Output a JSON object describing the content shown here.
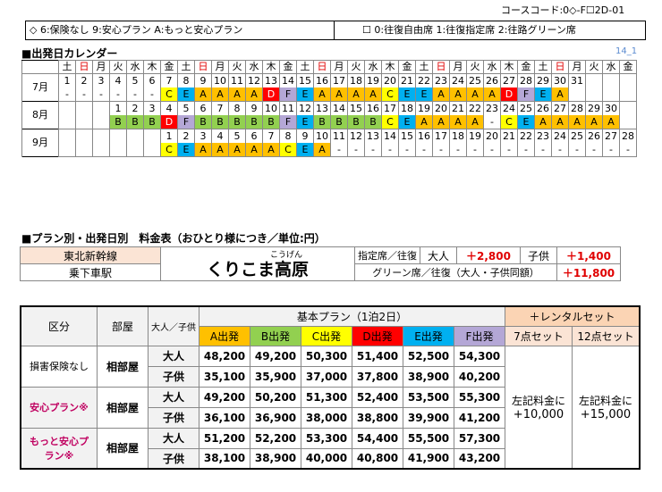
{
  "course_code": "コースコード:0◇-F☐2D-01",
  "legend_left": "◇ 6:保険なし 9:安心プラン A:もっと安心プラン",
  "legend_right": "☐ 0:往復自由席 1:往復指定席 2:往路グリーン席",
  "calendar_title": "■出発日カレンダー",
  "calendar_code": "14_1",
  "weekday_headers": [
    "土",
    "日",
    "月",
    "火",
    "水",
    "木",
    "金",
    "土",
    "日",
    "月",
    "火",
    "水",
    "木",
    "金",
    "土",
    "日",
    "月",
    "火",
    "水",
    "木",
    "金",
    "土",
    "日",
    "月",
    "火",
    "水",
    "木",
    "金",
    "土",
    "日",
    "月",
    "火",
    "水",
    "金"
  ],
  "months": [
    {
      "label": "7月",
      "days": [
        "1",
        "2",
        "3",
        "4",
        "5",
        "6",
        "7",
        "8",
        "9",
        "10",
        "11",
        "12",
        "13",
        "14",
        "15",
        "16",
        "17",
        "18",
        "19",
        "20",
        "21",
        "22",
        "23",
        "24",
        "25",
        "26",
        "27",
        "28",
        "29",
        "30",
        "31",
        "",
        "",
        ""
      ],
      "plans": [
        "-",
        "-",
        "-",
        "-",
        "-",
        "-",
        "C",
        "E",
        "A",
        "A",
        "A",
        "A",
        "D",
        "F",
        "E",
        "A",
        "A",
        "A",
        "A",
        "C",
        "E",
        "E",
        "A",
        "A",
        "A",
        "A",
        "D",
        "F",
        "E",
        "A",
        "",
        "",
        "",
        ""
      ]
    },
    {
      "label": "8月",
      "days": [
        "",
        "",
        "",
        "1",
        "2",
        "3",
        "4",
        "5",
        "6",
        "7",
        "8",
        "9",
        "10",
        "11",
        "12",
        "13",
        "14",
        "15",
        "16",
        "17",
        "18",
        "19",
        "20",
        "21",
        "22",
        "23",
        "24",
        "25",
        "26",
        "27",
        "28",
        "29",
        "30",
        ""
      ],
      "plans": [
        "",
        "",
        "",
        "B",
        "B",
        "B",
        "D",
        "F",
        "B",
        "B",
        "B",
        "B",
        "B",
        "F",
        "E",
        "B",
        "B",
        "B",
        "B",
        "C",
        "E",
        "A",
        "A",
        "A",
        "A",
        "-",
        "C",
        "E",
        "A",
        "A",
        "A",
        "A",
        "A",
        ""
      ]
    },
    {
      "label": "9月",
      "days": [
        "",
        "",
        "",
        "",
        "",
        "",
        "1",
        "2",
        "3",
        "4",
        "5",
        "6",
        "7",
        "8",
        "9",
        "10",
        "11",
        "12",
        "13",
        "14",
        "15",
        "16",
        "17",
        "18",
        "19",
        "20",
        "21",
        "22",
        "23",
        "24",
        "25",
        "26",
        "27",
        "28"
      ],
      "plans": [
        "",
        "",
        "",
        "",
        "",
        "",
        "C",
        "E",
        "A",
        "A",
        "A",
        "A",
        "A",
        "C",
        "E",
        "A",
        "-",
        "-",
        "-",
        "-",
        "-",
        "-",
        "-",
        "-",
        "-",
        "-",
        "-",
        "-",
        "-",
        "-",
        "-",
        "-",
        "-",
        "-"
      ]
    }
  ],
  "plan_colors": {
    "A": "#ffc000",
    "B": "#92d050",
    "C": "#ffff00",
    "D": "#ff0000",
    "E": "#00b0f0",
    "F": "#b4a7d6"
  },
  "fare_title": "■プラン別・出発日別　料金表（おひとり様につき／単位:円）",
  "fare": {
    "line": "東北新幹線",
    "station_label": "乗下車駅",
    "ruby": "こうげん",
    "station": "くりこま高原",
    "reserved_label": "指定席／往復",
    "adult": "大人",
    "adult_price": "＋2,800",
    "child": "子供",
    "child_price": "＋1,400",
    "green_label": "グリーン席／往復（大人・子供同額）",
    "green_price": "＋11,800"
  },
  "price": {
    "kubun": "区分",
    "room": "部屋",
    "adult_child": "大人／子供",
    "basic_plan": "基本プラン（1泊2日）",
    "rental": "＋レンタルセット",
    "plan_headers": [
      "A出発",
      "B出発",
      "C出発",
      "D出発",
      "E出発",
      "F出発"
    ],
    "rental_headers": [
      "7点セット",
      "12点セット"
    ],
    "rows": [
      {
        "category": "損害保険なし",
        "room": "相部屋",
        "lines": [
          [
            "大人",
            "48,200",
            "49,200",
            "50,300",
            "51,400",
            "52,500",
            "54,300"
          ],
          [
            "子供",
            "35,100",
            "35,900",
            "37,000",
            "37,800",
            "38,900",
            "40,200"
          ]
        ]
      },
      {
        "category": "安心プラン※",
        "room": "相部屋",
        "lines": [
          [
            "大人",
            "49,200",
            "50,200",
            "51,300",
            "52,400",
            "53,500",
            "55,300"
          ],
          [
            "子供",
            "36,100",
            "36,900",
            "38,000",
            "38,800",
            "39,900",
            "41,200"
          ]
        ]
      },
      {
        "category": "もっと安心プラン※",
        "room": "相部屋",
        "lines": [
          [
            "大人",
            "51,200",
            "52,200",
            "53,300",
            "54,400",
            "55,500",
            "57,300"
          ],
          [
            "子供",
            "38,100",
            "38,900",
            "40,000",
            "40,800",
            "41,900",
            "43,200"
          ]
        ]
      }
    ],
    "rental_note1": "左記料金に",
    "rental_price1": "+10,000",
    "rental_note2": "左記料金に",
    "rental_price2": "+15,000"
  }
}
